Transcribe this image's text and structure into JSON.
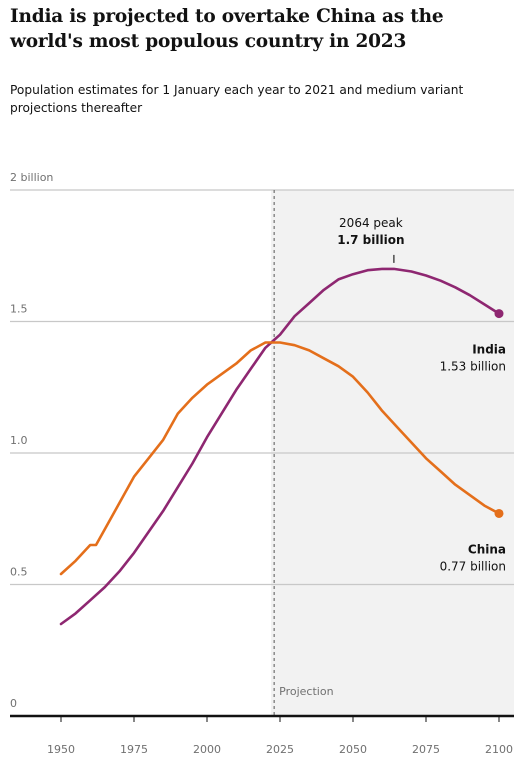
{
  "chart_data": {
    "type": "line",
    "title": "India is projected to overtake China as the world's most populous country in 2023",
    "subtitle": "Population estimates for 1 January each year to 2021 and medium variant projections thereafter",
    "xlim": [
      1950,
      2100
    ],
    "ylim": [
      0,
      2
    ],
    "x_ticks": [
      "1950",
      "1975",
      "2000",
      "2025",
      "2050",
      "2075",
      "2100"
    ],
    "y_ticks": [
      "0",
      "0.5",
      "1.0",
      "1.5",
      "2 billion"
    ],
    "grid": true,
    "projection_start": 2023,
    "projection_label": "Projection",
    "peak_annotation": {
      "line1": "2064 peak",
      "line2": "1.7 billion",
      "x": 2064,
      "y": 1.7
    },
    "series": [
      {
        "name": "India",
        "end_label": "India",
        "end_value": "1.53 billion",
        "color": "#8e2771",
        "points": [
          [
            1950,
            0.35
          ],
          [
            1955,
            0.39
          ],
          [
            1960,
            0.44
          ],
          [
            1965,
            0.49
          ],
          [
            1970,
            0.55
          ],
          [
            1975,
            0.62
          ],
          [
            1980,
            0.7
          ],
          [
            1985,
            0.78
          ],
          [
            1990,
            0.87
          ],
          [
            1995,
            0.96
          ],
          [
            2000,
            1.06
          ],
          [
            2005,
            1.15
          ],
          [
            2010,
            1.24
          ],
          [
            2015,
            1.32
          ],
          [
            2020,
            1.4
          ],
          [
            2023,
            1.43
          ],
          [
            2025,
            1.45
          ],
          [
            2030,
            1.52
          ],
          [
            2035,
            1.57
          ],
          [
            2040,
            1.62
          ],
          [
            2045,
            1.66
          ],
          [
            2050,
            1.68
          ],
          [
            2055,
            1.695
          ],
          [
            2060,
            1.7
          ],
          [
            2064,
            1.7
          ],
          [
            2070,
            1.69
          ],
          [
            2075,
            1.675
          ],
          [
            2080,
            1.655
          ],
          [
            2085,
            1.63
          ],
          [
            2090,
            1.6
          ],
          [
            2095,
            1.565
          ],
          [
            2100,
            1.53
          ]
        ]
      },
      {
        "name": "China",
        "end_label": "China",
        "end_value": "0.77 billion",
        "color": "#e46f1b",
        "points": [
          [
            1950,
            0.54
          ],
          [
            1955,
            0.59
          ],
          [
            1960,
            0.65
          ],
          [
            1962,
            0.65
          ],
          [
            1965,
            0.71
          ],
          [
            1970,
            0.81
          ],
          [
            1975,
            0.91
          ],
          [
            1980,
            0.98
          ],
          [
            1985,
            1.05
          ],
          [
            1990,
            1.15
          ],
          [
            1995,
            1.21
          ],
          [
            2000,
            1.26
          ],
          [
            2005,
            1.3
          ],
          [
            2010,
            1.34
          ],
          [
            2015,
            1.39
          ],
          [
            2020,
            1.42
          ],
          [
            2023,
            1.42
          ],
          [
            2025,
            1.42
          ],
          [
            2030,
            1.41
          ],
          [
            2035,
            1.39
          ],
          [
            2040,
            1.36
          ],
          [
            2045,
            1.33
          ],
          [
            2050,
            1.29
          ],
          [
            2055,
            1.23
          ],
          [
            2060,
            1.16
          ],
          [
            2065,
            1.1
          ],
          [
            2070,
            1.04
          ],
          [
            2075,
            0.98
          ],
          [
            2080,
            0.93
          ],
          [
            2085,
            0.88
          ],
          [
            2090,
            0.84
          ],
          [
            2095,
            0.8
          ],
          [
            2100,
            0.77
          ]
        ]
      }
    ]
  }
}
